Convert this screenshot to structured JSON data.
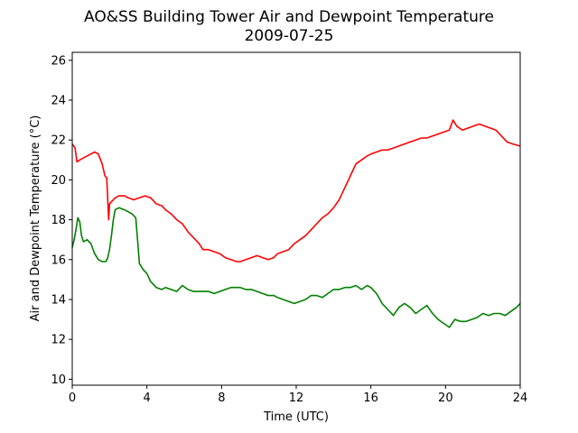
{
  "chart_data": {
    "type": "line",
    "title": "AO&SS Building Tower Air and Dewpoint Temperature",
    "subtitle": "2009-07-25",
    "xlabel": "Time (UTC)",
    "ylabel": "Air and Dewpoint Temperature (°C)",
    "xlim": [
      0,
      24
    ],
    "ylim": [
      9.7,
      26.4
    ],
    "xticks": [
      0,
      4,
      8,
      12,
      16,
      20,
      24
    ],
    "yticks": [
      10,
      12,
      14,
      16,
      18,
      20,
      22,
      24,
      26
    ],
    "grid": false,
    "legend": "none",
    "series": [
      {
        "color": "#ff0000",
        "x": [
          0,
          0.15,
          0.25,
          0.4,
          0.6,
          0.8,
          1.0,
          1.2,
          1.4,
          1.6,
          1.75,
          1.85,
          1.9,
          1.95,
          2.0,
          2.1,
          2.3,
          2.5,
          2.8,
          3.0,
          3.3,
          3.6,
          3.9,
          4.2,
          4.5,
          4.8,
          5.0,
          5.3,
          5.6,
          5.9,
          6.2,
          6.5,
          6.8,
          7.0,
          7.3,
          7.6,
          7.9,
          8.2,
          8.5,
          8.8,
          9.0,
          9.3,
          9.6,
          9.9,
          10.2,
          10.5,
          10.8,
          11.0,
          11.3,
          11.6,
          11.9,
          12.2,
          12.5,
          12.8,
          13.1,
          13.4,
          13.7,
          14.0,
          14.3,
          14.6,
          14.9,
          15.2,
          15.5,
          15.8,
          16.0,
          16.3,
          16.6,
          16.9,
          17.2,
          17.5,
          17.8,
          18.1,
          18.4,
          18.7,
          19.0,
          19.3,
          19.6,
          19.9,
          20.2,
          20.4,
          20.6,
          20.9,
          21.2,
          21.5,
          21.8,
          22.1,
          22.4,
          22.7,
          23.0,
          23.3,
          23.6,
          24.0
        ],
        "values": [
          21.8,
          21.6,
          20.9,
          21.0,
          21.1,
          21.2,
          21.3,
          21.4,
          21.3,
          20.8,
          20.2,
          20.1,
          19.0,
          18.0,
          18.8,
          18.9,
          19.1,
          19.2,
          19.2,
          19.1,
          19.0,
          19.1,
          19.2,
          19.1,
          18.8,
          18.7,
          18.5,
          18.3,
          18.0,
          17.8,
          17.4,
          17.1,
          16.8,
          16.5,
          16.5,
          16.4,
          16.3,
          16.1,
          16.0,
          15.9,
          15.9,
          16.0,
          16.1,
          16.2,
          16.1,
          16.0,
          16.1,
          16.3,
          16.4,
          16.5,
          16.8,
          17.0,
          17.2,
          17.5,
          17.8,
          18.1,
          18.3,
          18.6,
          19.0,
          19.6,
          20.2,
          20.8,
          21.0,
          21.2,
          21.3,
          21.4,
          21.5,
          21.5,
          21.6,
          21.7,
          21.8,
          21.9,
          22.0,
          22.1,
          22.1,
          22.2,
          22.3,
          22.4,
          22.5,
          23.0,
          22.7,
          22.5,
          22.6,
          22.7,
          22.8,
          22.7,
          22.6,
          22.5,
          22.2,
          21.9,
          21.8,
          21.7
        ]
      },
      {
        "color": "#008000",
        "x": [
          0,
          0.1,
          0.2,
          0.3,
          0.4,
          0.5,
          0.6,
          0.8,
          1.0,
          1.2,
          1.4,
          1.6,
          1.8,
          1.9,
          2.0,
          2.1,
          2.2,
          2.3,
          2.5,
          2.8,
          3.0,
          3.2,
          3.4,
          3.5,
          3.6,
          3.8,
          4.0,
          4.2,
          4.5,
          4.8,
          5.0,
          5.3,
          5.6,
          5.9,
          6.2,
          6.5,
          6.8,
          7.0,
          7.3,
          7.6,
          7.9,
          8.2,
          8.5,
          8.8,
          9.0,
          9.3,
          9.6,
          9.9,
          10.2,
          10.5,
          10.8,
          11.0,
          11.3,
          11.6,
          11.9,
          12.2,
          12.5,
          12.8,
          13.1,
          13.4,
          13.7,
          14.0,
          14.3,
          14.6,
          14.9,
          15.2,
          15.5,
          15.8,
          16.0,
          16.3,
          16.6,
          16.9,
          17.2,
          17.5,
          17.8,
          18.1,
          18.4,
          18.7,
          19.0,
          19.3,
          19.6,
          19.9,
          20.2,
          20.5,
          20.8,
          21.1,
          21.4,
          21.7,
          22.0,
          22.3,
          22.6,
          22.9,
          23.2,
          23.5,
          23.8,
          24.0
        ],
        "values": [
          16.6,
          17.0,
          17.5,
          18.1,
          17.9,
          17.2,
          16.9,
          17.0,
          16.8,
          16.3,
          16.0,
          15.9,
          15.9,
          16.1,
          16.5,
          17.2,
          18.0,
          18.5,
          18.6,
          18.5,
          18.4,
          18.3,
          18.1,
          17.0,
          15.8,
          15.5,
          15.3,
          14.9,
          14.6,
          14.5,
          14.6,
          14.5,
          14.4,
          14.7,
          14.5,
          14.4,
          14.4,
          14.4,
          14.4,
          14.3,
          14.4,
          14.5,
          14.6,
          14.6,
          14.6,
          14.5,
          14.5,
          14.4,
          14.3,
          14.2,
          14.2,
          14.1,
          14.0,
          13.9,
          13.8,
          13.9,
          14.0,
          14.2,
          14.2,
          14.1,
          14.3,
          14.5,
          14.5,
          14.6,
          14.6,
          14.7,
          14.5,
          14.7,
          14.6,
          14.3,
          13.8,
          13.5,
          13.2,
          13.6,
          13.8,
          13.6,
          13.3,
          13.5,
          13.7,
          13.3,
          13.0,
          12.8,
          12.6,
          13.0,
          12.9,
          12.9,
          13.0,
          13.1,
          13.3,
          13.2,
          13.3,
          13.3,
          13.2,
          13.4,
          13.6,
          13.8
        ]
      }
    ]
  }
}
